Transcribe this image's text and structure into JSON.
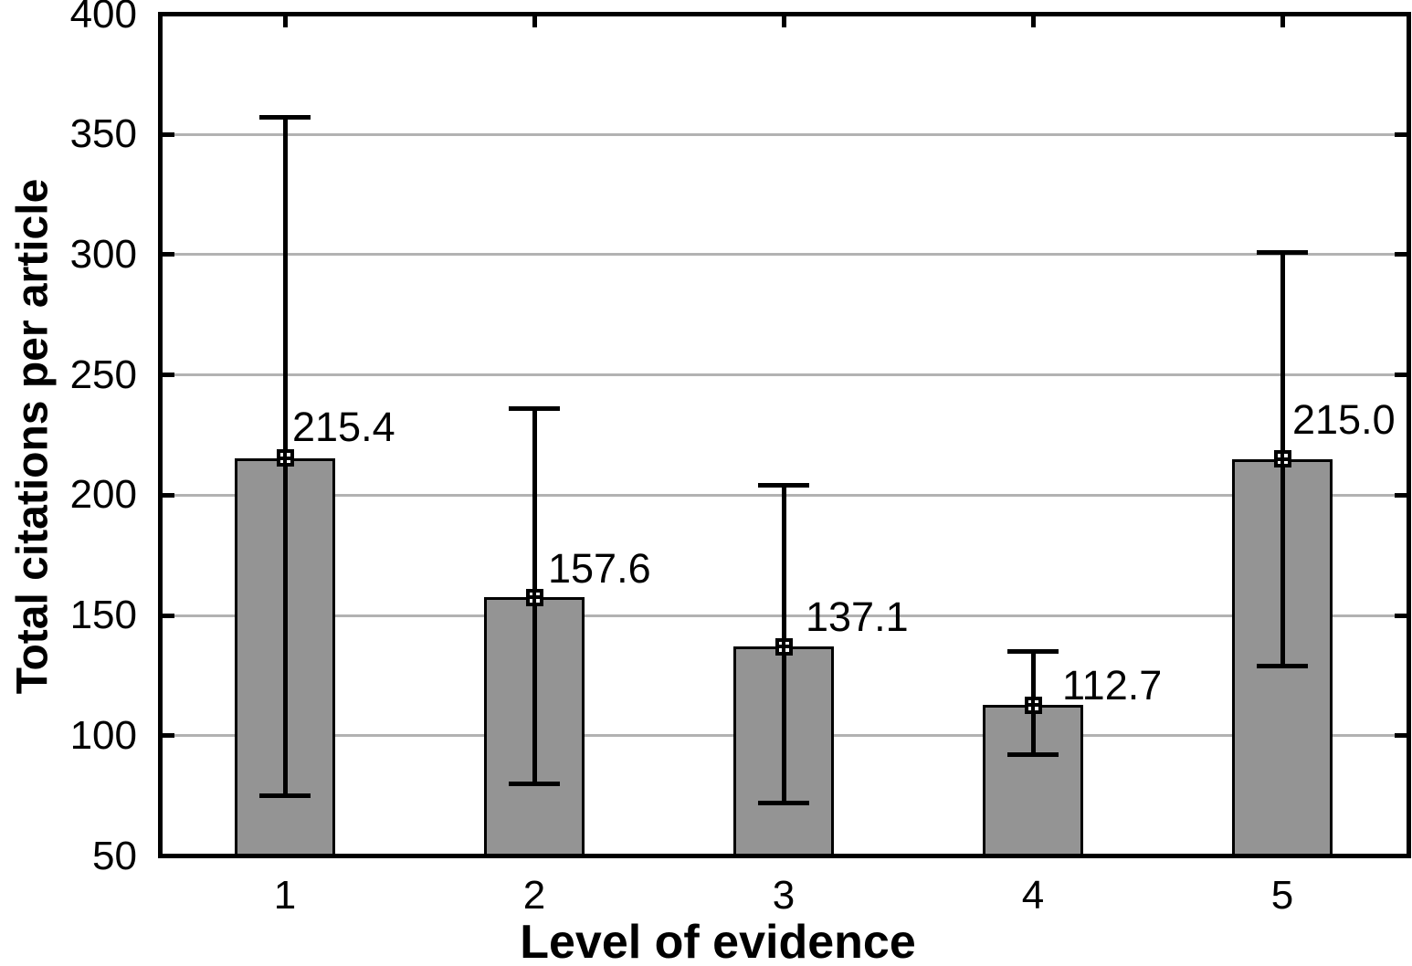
{
  "chart_data": {
    "type": "bar",
    "title": "",
    "xlabel": "Level of evidence",
    "ylabel": "Total citations per article",
    "categories": [
      "1",
      "2",
      "3",
      "4",
      "5"
    ],
    "values": [
      215.4,
      157.6,
      137.1,
      112.7,
      215.0
    ],
    "value_labels": [
      "215.4",
      "157.6",
      "137.1",
      "112.7",
      "215.0"
    ],
    "error_high": [
      357,
      236,
      204,
      135,
      301
    ],
    "error_low": [
      75,
      80,
      72,
      92,
      129
    ],
    "ylim": [
      50,
      400
    ],
    "yticks": [
      400,
      350,
      300,
      250,
      200,
      150,
      100,
      50
    ],
    "grid": "horizontal-gridlines-on",
    "legend": "none",
    "marker": "open-square-with-cross-at-bar-top",
    "colors": {
      "bar_fill": "#949494",
      "bar_border": "#000000",
      "gridline": "#b2b2b2",
      "frame": "#000000",
      "error_bar": "#000000",
      "text": "#000000",
      "background": "#ffffff"
    }
  }
}
